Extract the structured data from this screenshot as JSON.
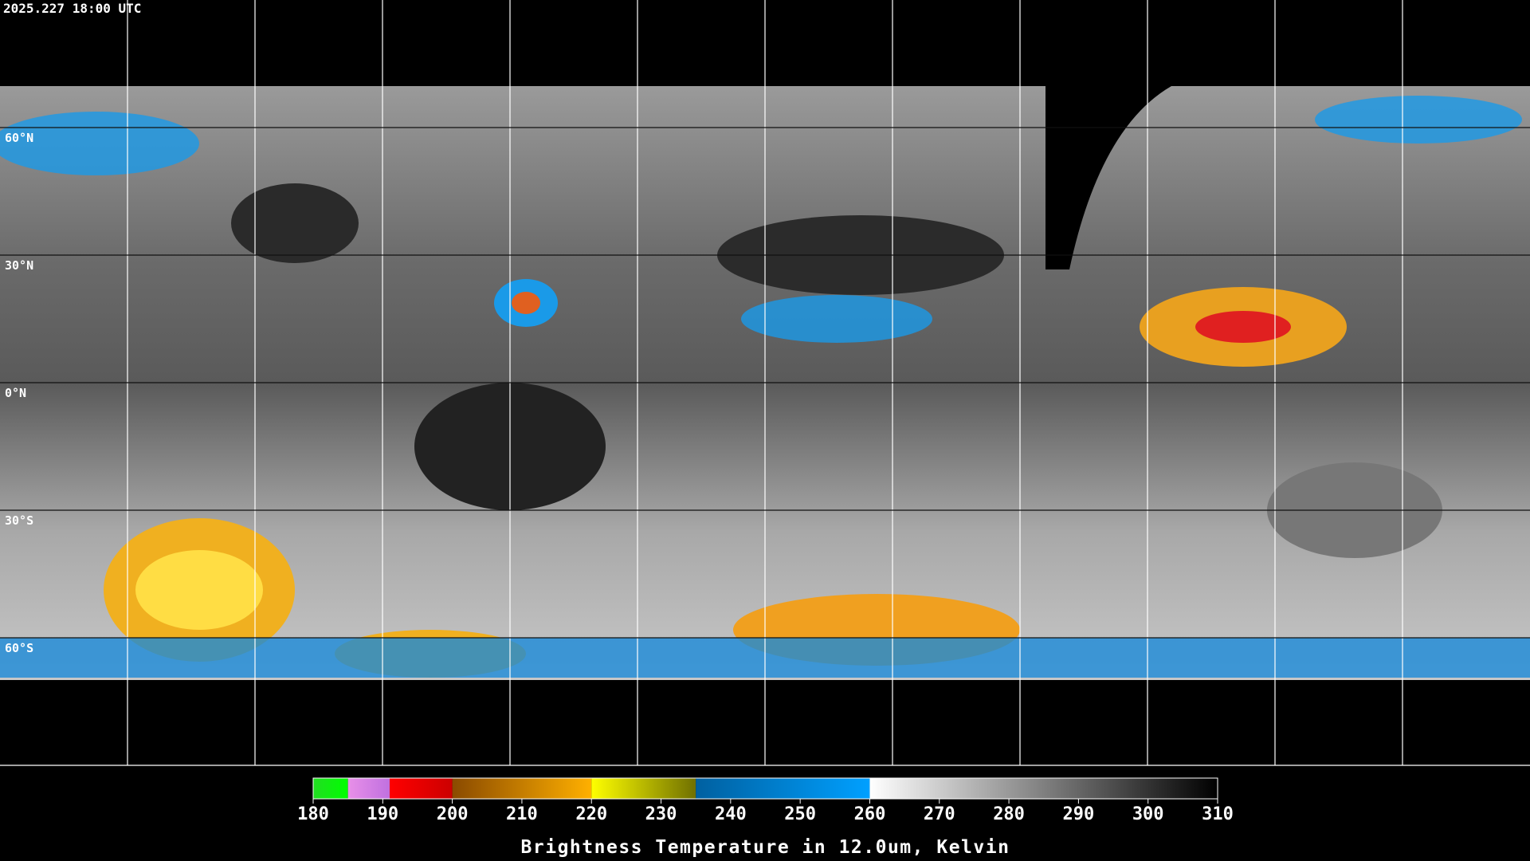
{
  "header": {
    "timestamp": "2025.227 18:00 UTC"
  },
  "map": {
    "lat_labels": [
      "60°N",
      "30°N",
      "0°N",
      "30°S",
      "60°S"
    ]
  },
  "colorbar": {
    "title": "Brightness Temperature in 12.0um, Kelvin",
    "range": [
      180,
      310
    ],
    "ticks": [
      180,
      190,
      200,
      210,
      220,
      230,
      240,
      250,
      260,
      270,
      280,
      290,
      300,
      310
    ],
    "segments": [
      {
        "from": 180,
        "to": 185,
        "colors": [
          "#22dd22",
          "#00ff00"
        ]
      },
      {
        "from": 185,
        "to": 191,
        "colors": [
          "#e890e8",
          "#c070e0"
        ]
      },
      {
        "from": 191,
        "to": 200,
        "colors": [
          "#ff0000",
          "#cc0000"
        ]
      },
      {
        "from": 200,
        "to": 220,
        "colors": [
          "#8a4a00",
          "#ffb000"
        ]
      },
      {
        "from": 220,
        "to": 235,
        "colors": [
          "#ffff00",
          "#707000"
        ]
      },
      {
        "from": 235,
        "to": 260,
        "colors": [
          "#0060a0",
          "#00a0ff"
        ]
      },
      {
        "from": 260,
        "to": 310,
        "colors": [
          "#ffffff",
          "#000000"
        ]
      }
    ]
  }
}
